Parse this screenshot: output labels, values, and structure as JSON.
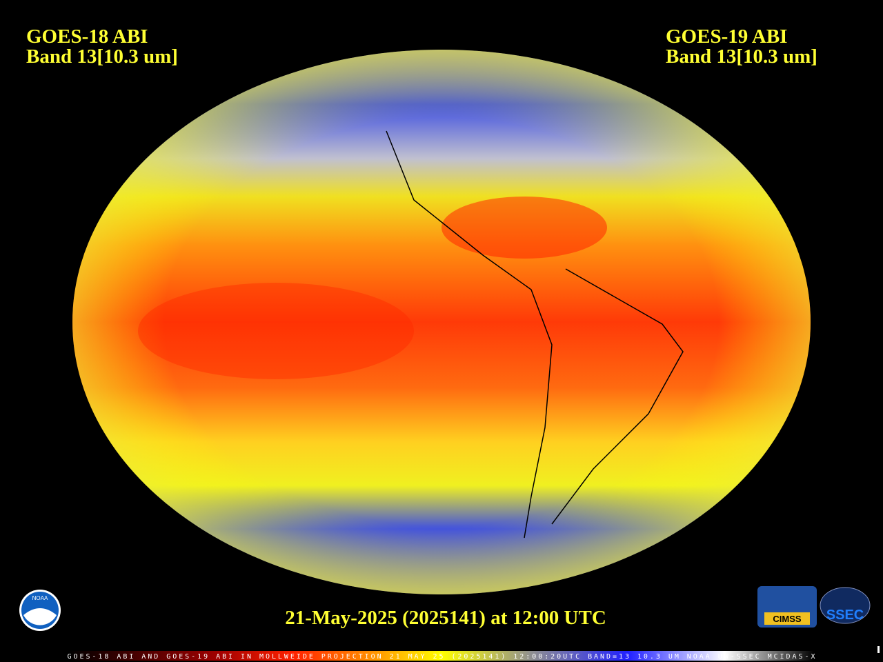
{
  "header": {
    "left": {
      "line1": "GOES-18 ABI",
      "line2": "Band 13[10.3 um]"
    },
    "right": {
      "line1": "GOES-19 ABI",
      "line2": "Band 13[10.3 um]"
    }
  },
  "timestamp": "21-May-2025 (2025141) at 12:00 UTC",
  "footer": "GOES-18 ABI AND GOES-19 ABI IN MOLLWEIDE PROJECTION 21 MAY 25 (2025141) 12:00:20UTC BAND=13 10.3 UM NOAA UW-SSEC MCIDAS-X",
  "logos": {
    "noaa": "NOAA",
    "cimss": "CIMSS",
    "ssec": "SSEC"
  }
}
